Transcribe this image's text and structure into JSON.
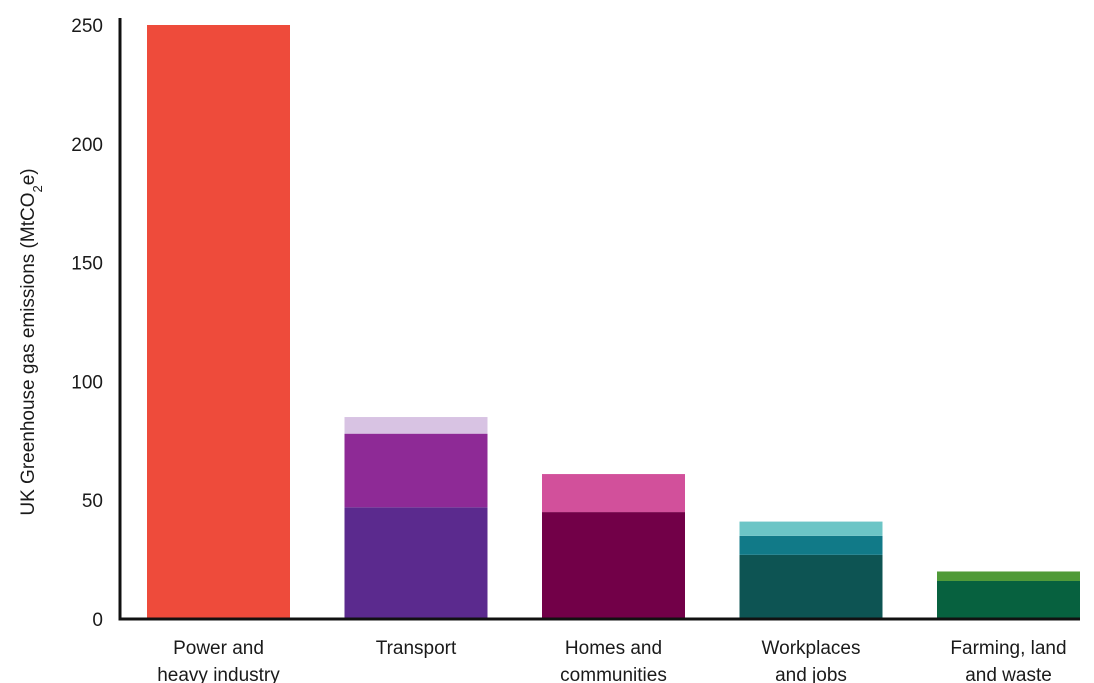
{
  "chart_data": {
    "type": "bar",
    "stacked": true,
    "ylabel": {
      "main": "UK Greenhouse gas emissions (MtCO",
      "sub": "2",
      "end": "e)"
    },
    "ylim": [
      0,
      250
    ],
    "yticks": [
      "0",
      "50",
      "100",
      "150",
      "200",
      "250"
    ],
    "grid": false,
    "legend": "none",
    "categories": [
      {
        "label_lines": [
          "Power and",
          "heavy industry"
        ],
        "segments": [
          {
            "value": 250,
            "color": "#EE4B3B"
          }
        ]
      },
      {
        "label_lines": [
          "Transport"
        ],
        "segments": [
          {
            "value": 47,
            "color": "#5B2A8E"
          },
          {
            "value": 31,
            "color": "#8E2A96"
          },
          {
            "value": 7,
            "color": "#D8C3E3"
          }
        ]
      },
      {
        "label_lines": [
          "Homes and",
          "communities"
        ],
        "segments": [
          {
            "value": 45,
            "color": "#720048"
          },
          {
            "value": 16,
            "color": "#D2509B"
          }
        ]
      },
      {
        "label_lines": [
          "Workplaces",
          "and jobs"
        ],
        "segments": [
          {
            "value": 27,
            "color": "#0D5453"
          },
          {
            "value": 8,
            "color": "#117A88"
          },
          {
            "value": 6,
            "color": "#6CC5C6"
          }
        ]
      },
      {
        "label_lines": [
          "Farming, land",
          "and waste"
        ],
        "segments": [
          {
            "value": 16,
            "color": "#07613F"
          },
          {
            "value": 4,
            "color": "#4F9A38"
          }
        ]
      }
    ]
  }
}
